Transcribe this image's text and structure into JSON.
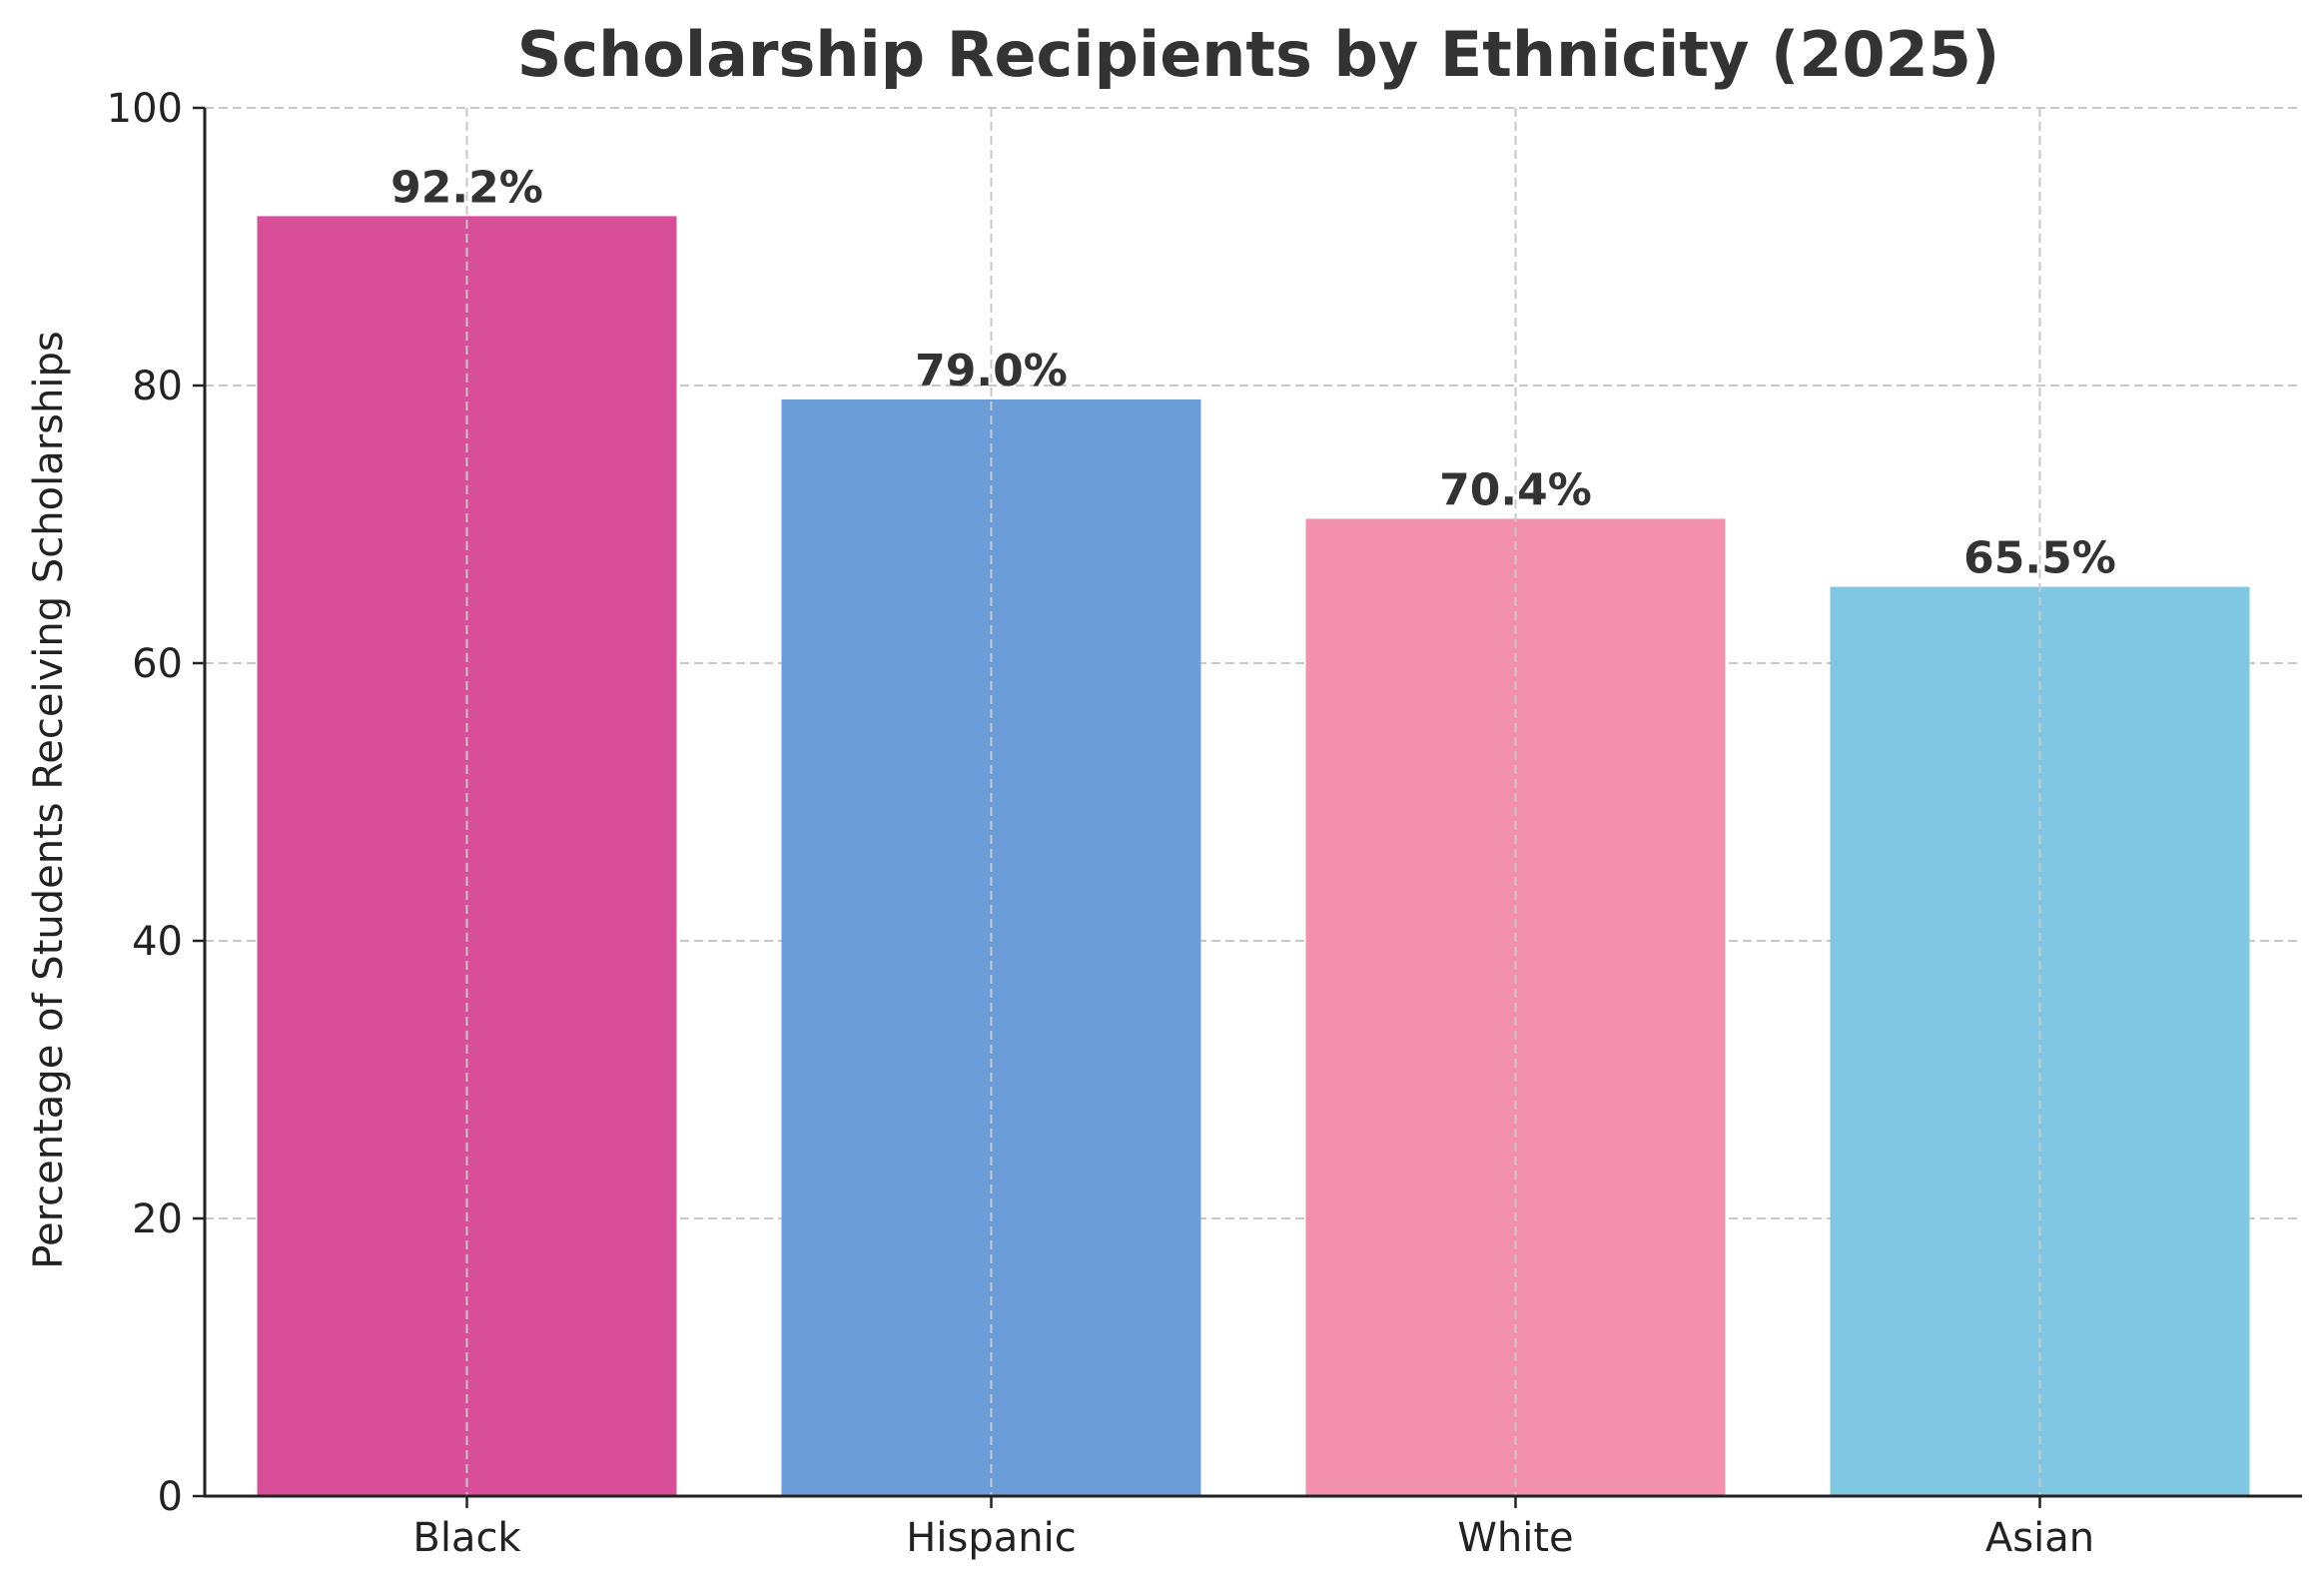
{
  "chart_data": {
    "type": "bar",
    "title": "Scholarship Recipients by Ethnicity (2025)",
    "xlabel": "",
    "ylabel": "Percentage of Students Receiving Scholarships",
    "categories": [
      "Black",
      "Hispanic",
      "White",
      "Asian"
    ],
    "values": [
      92.2,
      79.0,
      70.4,
      65.5
    ],
    "value_labels": [
      "92.2%",
      "79.0%",
      "70.4%",
      "65.5%"
    ],
    "colors": [
      "#d94e98",
      "#6b9ed8",
      "#f390ae",
      "#7fc7e2"
    ],
    "ylim": [
      0,
      100
    ],
    "yticks": [
      0,
      20,
      40,
      60,
      80,
      100
    ],
    "grid": true,
    "legend": "none"
  }
}
